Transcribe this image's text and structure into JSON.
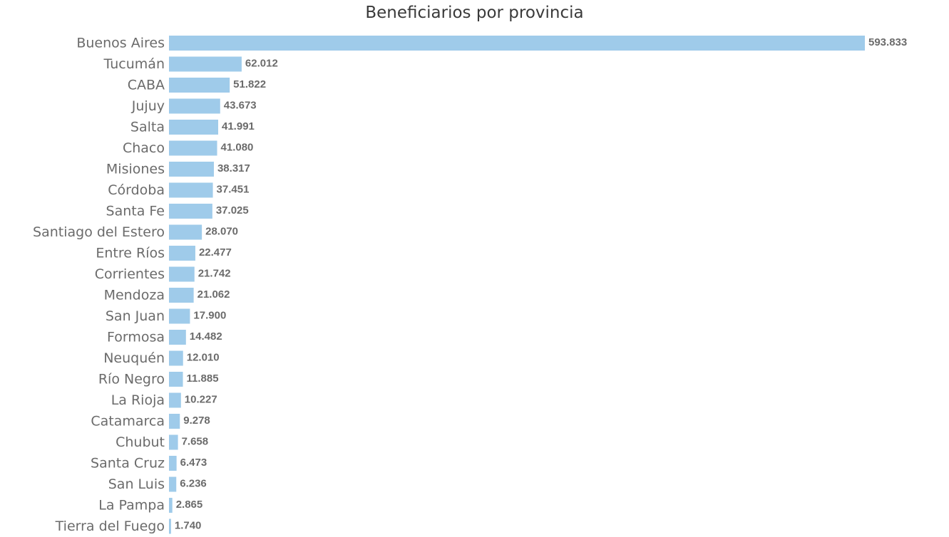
{
  "chart_data": {
    "type": "bar",
    "orientation": "horizontal",
    "title": "Beneficiarios por provincia",
    "xlabel": "",
    "ylabel": "",
    "bar_color": "#9fcbea",
    "label_color": "#6b6b6b",
    "grid": false,
    "categories": [
      "Buenos Aires",
      "Tucumán",
      "CABA",
      "Jujuy",
      "Salta",
      "Chaco",
      "Misiones",
      "Córdoba",
      "Santa Fe",
      "Santiago del Estero",
      "Entre Ríos",
      "Corrientes",
      "Mendoza",
      "San Juan",
      "Formosa",
      "Neuquén",
      "Río Negro",
      "La Rioja",
      "Catamarca",
      "Chubut",
      "Santa Cruz",
      "San Luis",
      "La Pampa",
      "Tierra del Fuego"
    ],
    "values": [
      593833,
      62012,
      51822,
      43673,
      41991,
      41080,
      38317,
      37451,
      37025,
      28070,
      22477,
      21742,
      21062,
      17900,
      14482,
      12010,
      11885,
      10227,
      9278,
      7658,
      6473,
      6236,
      2865,
      1740
    ],
    "value_labels": [
      "593.833",
      "62.012",
      "51.822",
      "43.673",
      "41.991",
      "41.080",
      "38.317",
      "37.451",
      "37.025",
      "28.070",
      "22.477",
      "21.742",
      "21.062",
      "17.900",
      "14.482",
      "12.010",
      "11.885",
      "10.227",
      "9.278",
      "7.658",
      "6.473",
      "6.236",
      "2.865",
      "1.740"
    ]
  }
}
